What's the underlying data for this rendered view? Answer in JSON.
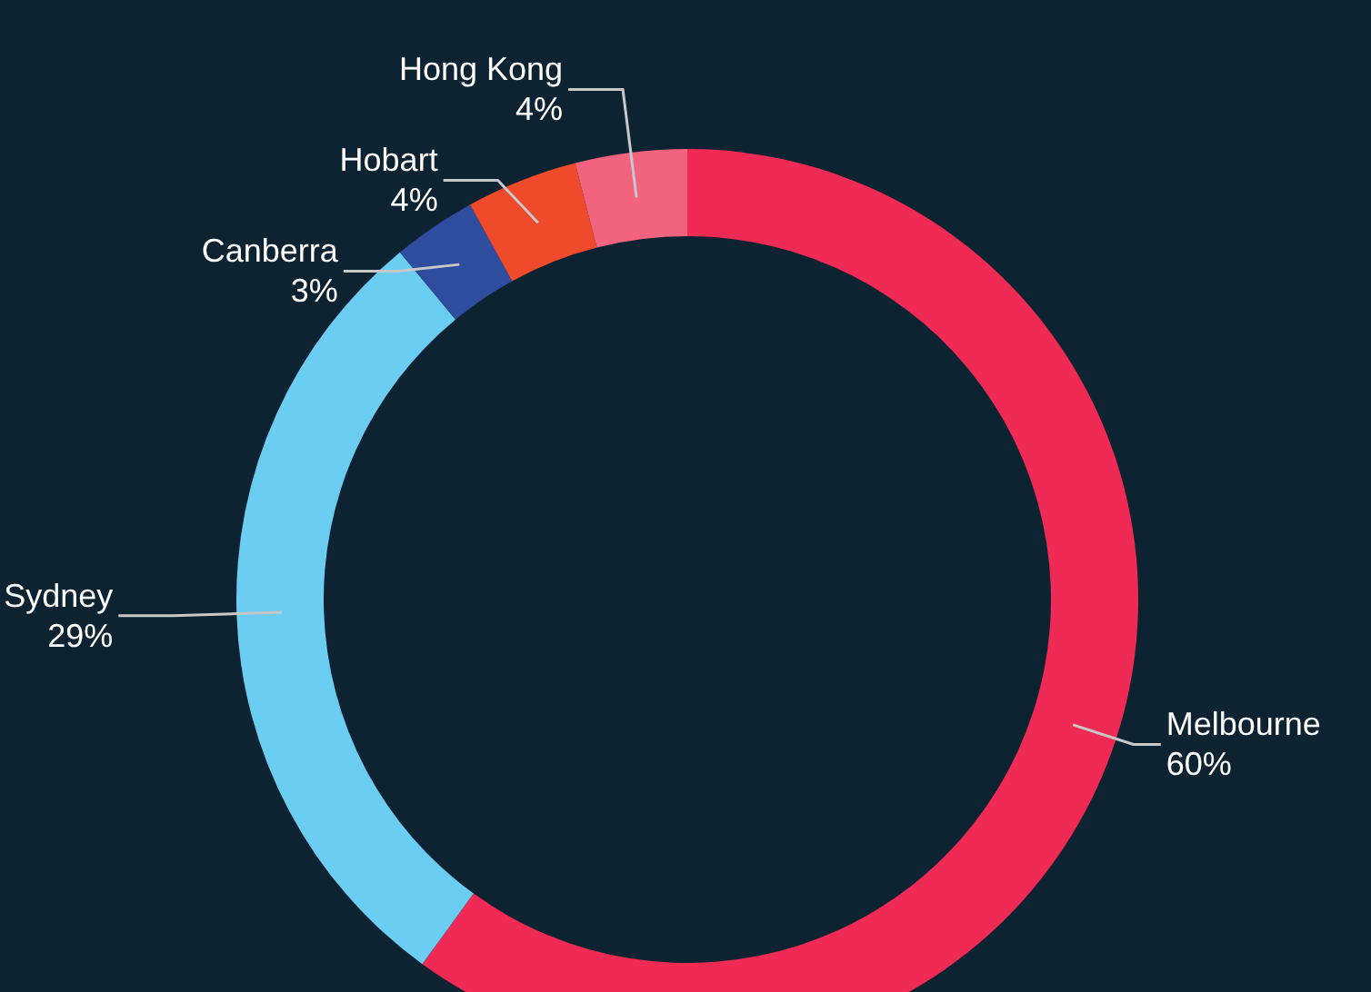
{
  "chart_data": {
    "type": "donut",
    "categories": [
      "Melbourne",
      "Sydney",
      "Canberra",
      "Hobart",
      "Hong Kong"
    ],
    "values": [
      60,
      29,
      3,
      4,
      4
    ],
    "value_labels": [
      "60%",
      "29%",
      "3%",
      "4%",
      "4%"
    ],
    "colors": [
      "#ee2a55",
      "#6ccdf3",
      "#2f4d9e",
      "#ef4a2c",
      "#f2637f"
    ]
  }
}
